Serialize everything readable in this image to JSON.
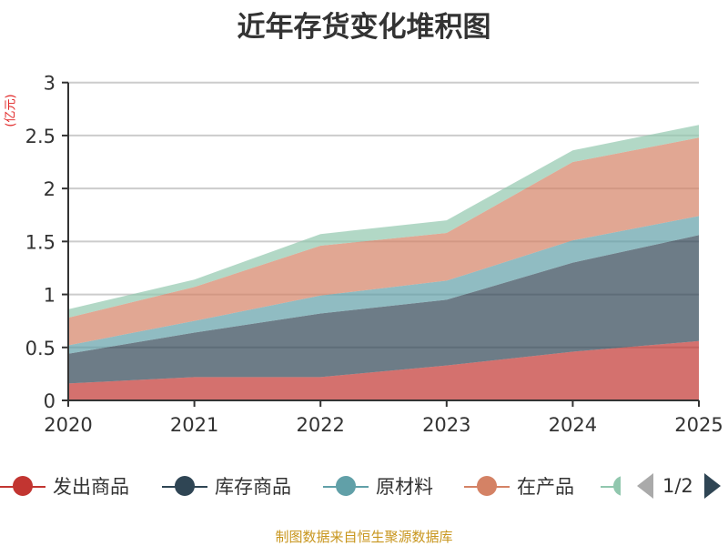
{
  "title": "近年存货变化堆积图",
  "footer": "制图数据来自恒生聚源数据库",
  "pager": {
    "text": "1/2"
  },
  "chart_data": {
    "type": "area",
    "stacked": true,
    "title": "近年存货变化堆积图",
    "ylabel": "(亿元)",
    "xlabel": "",
    "ylim": [
      0,
      3
    ],
    "yticks": [
      "0",
      "0.5",
      "1",
      "1.5",
      "2",
      "2.5",
      "3"
    ],
    "ytick_values": [
      0,
      0.5,
      1,
      1.5,
      2,
      2.5,
      3
    ],
    "categories": [
      "2020",
      "2021",
      "2022",
      "2023",
      "2024",
      "2025"
    ],
    "grid": true,
    "legend_position": "bottom",
    "series": [
      {
        "name": "发出商品",
        "color": "#c23531",
        "values": [
          0.16,
          0.22,
          0.22,
          0.33,
          0.46,
          0.56
        ]
      },
      {
        "name": "库存商品",
        "color": "#2f4554",
        "values": [
          0.28,
          0.42,
          0.6,
          0.62,
          0.84,
          1.0
        ]
      },
      {
        "name": "原材料",
        "color": "#61a0a8",
        "values": [
          0.08,
          0.11,
          0.17,
          0.18,
          0.21,
          0.18
        ]
      },
      {
        "name": "在产品",
        "color": "#d48265",
        "values": [
          0.26,
          0.32,
          0.47,
          0.45,
          0.74,
          0.74
        ]
      },
      {
        "name": "",
        "color": "#91c7ae",
        "values": [
          0.08,
          0.07,
          0.11,
          0.12,
          0.11,
          0.12
        ]
      }
    ]
  }
}
